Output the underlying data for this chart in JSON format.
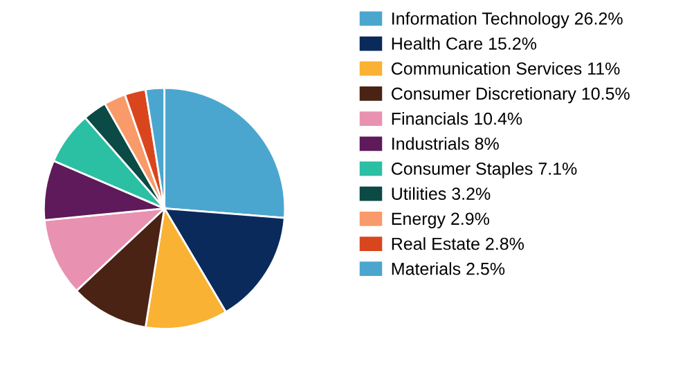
{
  "chart_data": {
    "type": "pie",
    "categories": [
      "Information Technology",
      "Health Care",
      "Communication Services",
      "Consumer Discretionary",
      "Financials",
      "Industrials",
      "Consumer Staples",
      "Utilities",
      "Energy",
      "Real Estate",
      "Materials"
    ],
    "values": [
      26.2,
      15.2,
      11,
      10.5,
      10.4,
      8,
      7.1,
      3.2,
      2.9,
      2.8,
      2.5
    ],
    "value_labels": [
      "26.2%",
      "15.2%",
      "11%",
      "10.5%",
      "10.4%",
      "8%",
      "7.1%",
      "3.2%",
      "2.9%",
      "2.8%",
      "2.5%"
    ],
    "colors": [
      "#4ba6cf",
      "#0a2a5c",
      "#f9b233",
      "#4a2315",
      "#e991b0",
      "#5e1a5a",
      "#2bbfa4",
      "#0b4a45",
      "#f99a6a",
      "#d9461d",
      "#4ba6cf"
    ],
    "legend": "right"
  }
}
